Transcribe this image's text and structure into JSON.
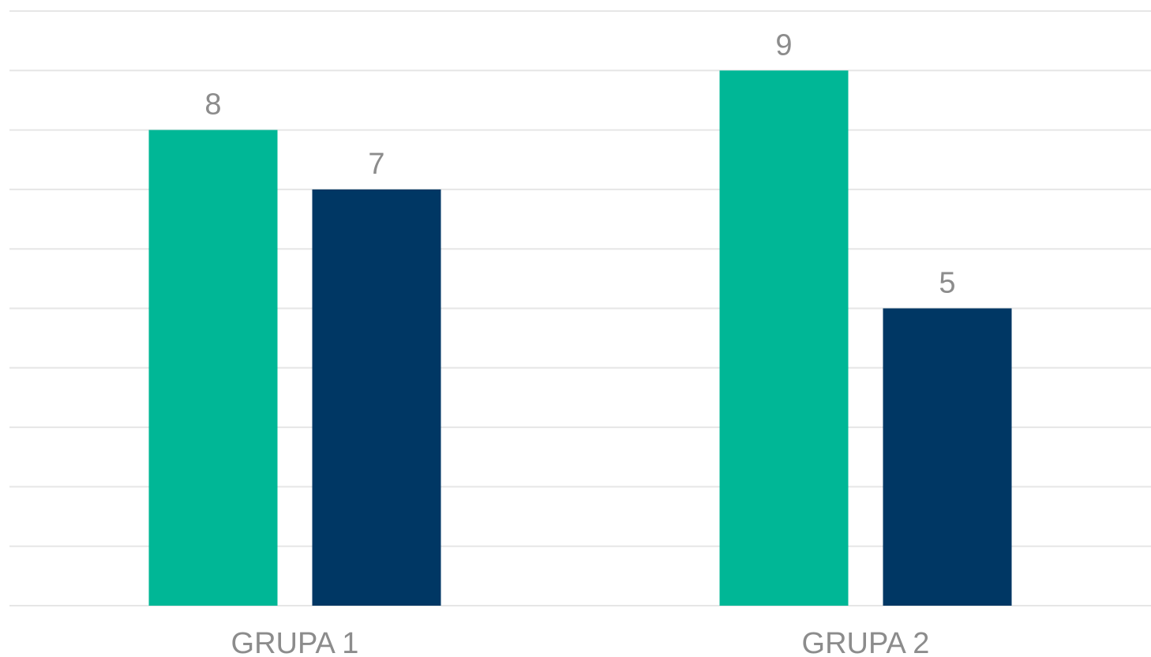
{
  "chart_data": {
    "type": "bar",
    "categories": [
      "GRUPA 1",
      "GRUPA 2"
    ],
    "series": [
      {
        "values": [
          8,
          9
        ],
        "color": "#00B796"
      },
      {
        "values": [
          7,
          5
        ],
        "color": "#003764"
      }
    ],
    "ylim": [
      0,
      10
    ],
    "grid": true,
    "data_labels": true,
    "legend": "none"
  }
}
